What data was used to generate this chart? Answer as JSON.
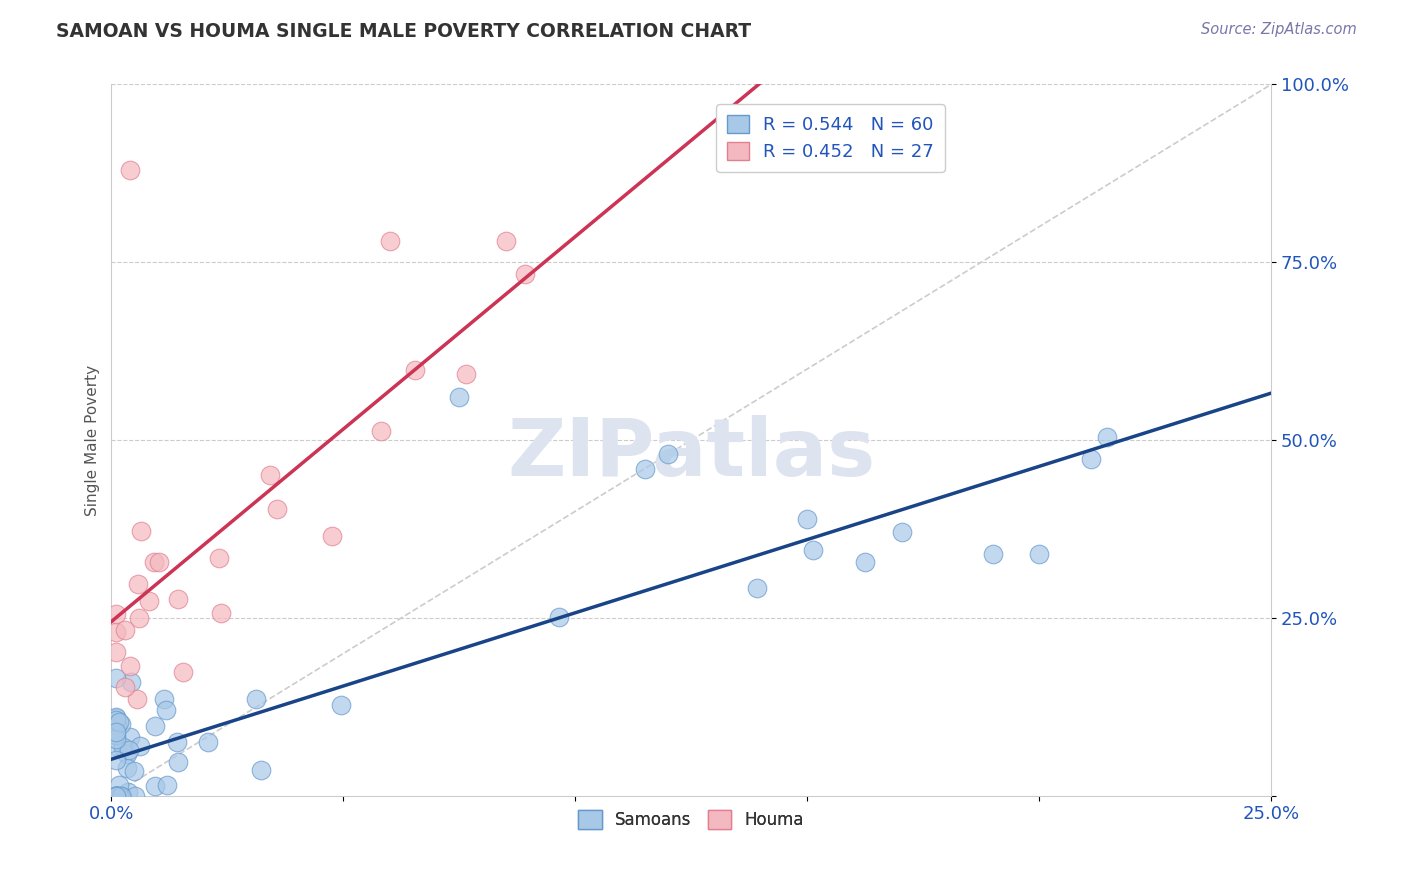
{
  "title": "SAMOAN VS HOUMA SINGLE MALE POVERTY CORRELATION CHART",
  "source": "Source: ZipAtlas.com",
  "ylabel": "Single Male Poverty",
  "xlim": [
    0.0,
    0.25
  ],
  "ylim": [
    0.0,
    1.0
  ],
  "xtick_vals": [
    0.0,
    0.05,
    0.1,
    0.15,
    0.2,
    0.25
  ],
  "xtick_labels": [
    "0.0%",
    "",
    "",
    "",
    "",
    "25.0%"
  ],
  "ytick_vals": [
    0.0,
    0.25,
    0.5,
    0.75,
    1.0
  ],
  "ytick_labels": [
    "",
    "25.0%",
    "50.0%",
    "75.0%",
    "100.0%"
  ],
  "R_sam": 0.544,
  "N_sam": 60,
  "R_hom": 0.452,
  "N_hom": 27,
  "blue_face": "#a8c8e8",
  "blue_edge": "#6699cc",
  "pink_face": "#f4b8c0",
  "pink_edge": "#e08090",
  "blue_line": "#1a4488",
  "pink_line": "#cc3355",
  "gray_dash": "#bbbbbb",
  "watermark": "ZIPatlas",
  "grid_color": "#cccccc"
}
